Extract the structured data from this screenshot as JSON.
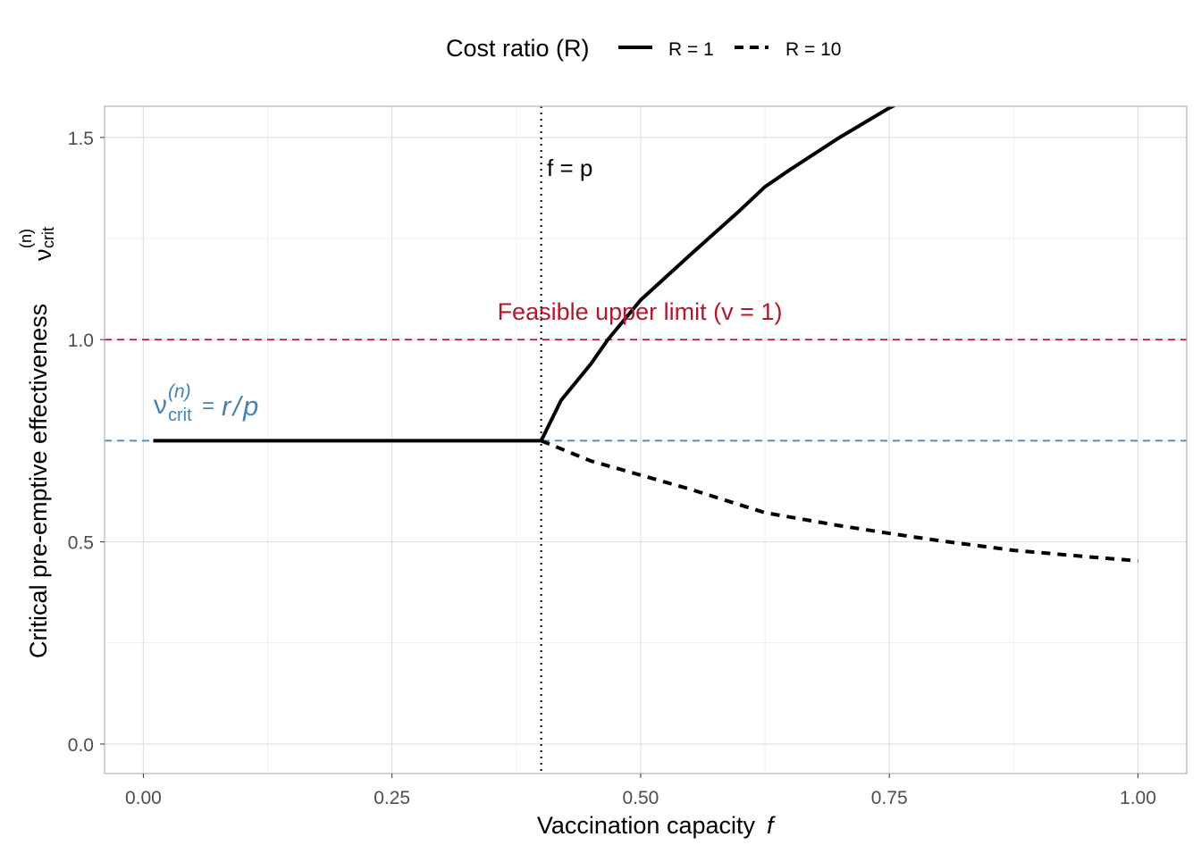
{
  "chart_data": {
    "type": "line",
    "xlabel": "Vaccination capacity",
    "xlabel_var": "f",
    "ylabel": "Critical pre-emptive effectiveness",
    "ylabel_symbol": {
      "base": "ν",
      "sup": "(n)",
      "sub": "crit"
    },
    "xlim": [
      -0.039,
      1.049
    ],
    "ylim": [
      -0.073,
      1.577
    ],
    "x_ticks": [
      0,
      0.25,
      0.5,
      0.75,
      1.0
    ],
    "x_tick_labels": [
      "0.00",
      "0.25",
      "0.50",
      "0.75",
      "1.00"
    ],
    "y_ticks": [
      0,
      0.5,
      1.0,
      1.5
    ],
    "y_tick_labels": [
      "0.0",
      "0.5",
      "1.0",
      "1.5"
    ],
    "grid": true,
    "legend": {
      "title": "Cost ratio (R)",
      "position": "top",
      "entries": [
        "R = 1",
        "R = 10"
      ]
    },
    "series": [
      {
        "name": "R = 1",
        "style": "solid",
        "x": [
          0.01,
          0.4,
          0.42,
          0.45,
          0.467,
          0.5,
          0.55,
          0.6,
          0.625,
          0.65,
          0.7,
          0.75,
          0.76
        ],
        "y": [
          0.75,
          0.75,
          0.85,
          0.94,
          1.0,
          1.098,
          1.21,
          1.32,
          1.378,
          1.42,
          1.5,
          1.573,
          1.585
        ]
      },
      {
        "name": "R = 10",
        "style": "dashed",
        "x": [
          0.4,
          0.45,
          0.5,
          0.55,
          0.625,
          0.7,
          0.75,
          0.8,
          0.875,
          0.95,
          1.0
        ],
        "y": [
          0.75,
          0.7,
          0.665,
          0.63,
          0.572,
          0.54,
          0.521,
          0.503,
          0.479,
          0.463,
          0.453
        ]
      }
    ],
    "reference_lines": [
      {
        "type": "vline",
        "x": 0.4,
        "style": "dotted",
        "color": "#000000",
        "label": "f = p"
      },
      {
        "type": "hline",
        "y": 1.0,
        "style": "dashed",
        "color": "#B2182B",
        "label": "Feasible upper limit (v = 1)"
      },
      {
        "type": "hline",
        "y": 0.75,
        "style": "dashed",
        "color": "#4682B4",
        "label_parts": {
          "base": "ν",
          "sup": "(n)",
          "sub": "crit",
          "eq": "=",
          "rhs": "r / p"
        }
      }
    ]
  }
}
